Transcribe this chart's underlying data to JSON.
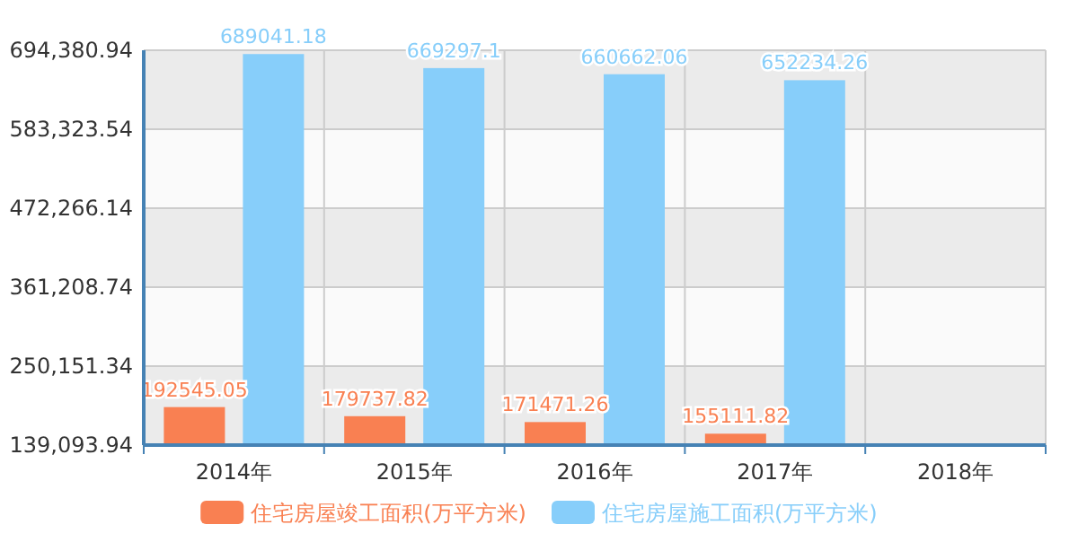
{
  "chart_data": {
    "type": "bar",
    "categories": [
      "2014年",
      "2015年",
      "2016年",
      "2017年",
      "2018年"
    ],
    "series": [
      {
        "name": "住宅房屋竣工面积(万平方米)",
        "color": "#f98052",
        "values": [
          192545.05,
          179737.82,
          171471.26,
          155111.82,
          null
        ]
      },
      {
        "name": "住宅房屋施工面积(万平方米)",
        "color": "#87cefa",
        "values": [
          689041.18,
          669297.1,
          660662.06,
          652234.26,
          null
        ]
      }
    ],
    "ylim": [
      139093.94,
      694380.94
    ],
    "yticks": [
      {
        "value": 139093.94,
        "label": "139,093.94"
      },
      {
        "value": 250151.34,
        "label": "250,151.34"
      },
      {
        "value": 361208.74,
        "label": "361,208.74"
      },
      {
        "value": 472266.14,
        "label": "472,266.14"
      },
      {
        "value": 583323.54,
        "label": "583,323.54"
      },
      {
        "value": 694380.94,
        "label": "694,380.94"
      }
    ],
    "grid": true,
    "legend": "bottom",
    "data_labels": true
  }
}
